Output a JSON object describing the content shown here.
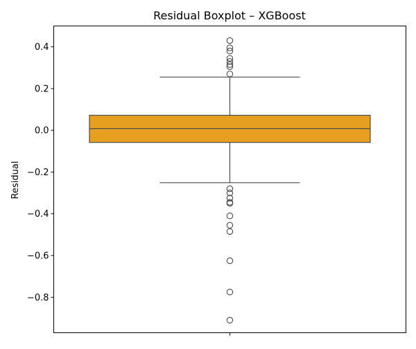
{
  "chart_data": {
    "type": "boxplot",
    "title": "Residual Boxplot – XGBoost",
    "xlabel": "",
    "ylabel": "Residual",
    "ylim": [
      -0.97,
      0.5
    ],
    "yticks": [
      0.4,
      0.2,
      0.0,
      -0.2,
      -0.4,
      -0.6,
      -0.8
    ],
    "ytick_labels": [
      "0.4",
      "0.2",
      "0.0",
      "−0.2",
      "−0.4",
      "−0.6",
      "−0.8"
    ],
    "grid": false,
    "legend": "none",
    "box": {
      "q1": -0.058,
      "median": 0.008,
      "q3": 0.072,
      "whisker_low": -0.251,
      "whisker_high": 0.255,
      "color": "#e69f1f",
      "edge_color": "#4a4a4a"
    },
    "outliers": [
      0.43,
      0.395,
      0.38,
      0.345,
      0.33,
      0.315,
      0.305,
      0.27,
      -0.28,
      -0.3,
      -0.325,
      -0.345,
      -0.35,
      -0.41,
      -0.455,
      -0.485,
      -0.625,
      -0.775,
      -0.91
    ]
  }
}
